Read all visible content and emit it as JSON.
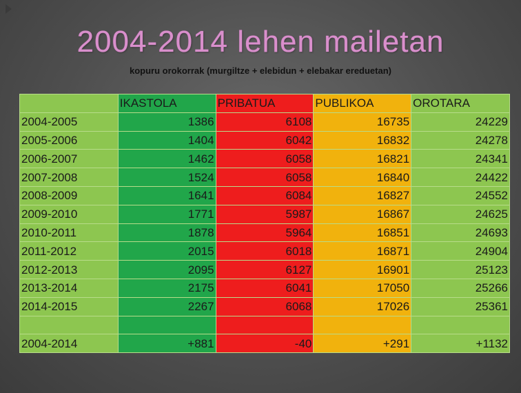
{
  "slide": {
    "title": "2004-2014 lehen mailetan",
    "subtitle": "kopuru orokorrak  (murgiltze  + elebidun + elebakar ereduetan)"
  },
  "table": {
    "headers": [
      "",
      "IKASTOLA",
      "PRIBATUA",
      "PUBLIKOA",
      "OROTARA"
    ],
    "rows": [
      {
        "period": "2004-2005",
        "ikastola": "1386",
        "pribatua": "6108",
        "publikoa": "16735",
        "orotara": "24229"
      },
      {
        "period": "2005-2006",
        "ikastola": "1404",
        "pribatua": "6042",
        "publikoa": "16832",
        "orotara": "24278"
      },
      {
        "period": "2006-2007",
        "ikastola": "1462",
        "pribatua": "6058",
        "publikoa": "16821",
        "orotara": "24341"
      },
      {
        "period": "2007-2008",
        "ikastola": "1524",
        "pribatua": "6058",
        "publikoa": "16840",
        "orotara": "24422"
      },
      {
        "period": "2008-2009",
        "ikastola": "1641",
        "pribatua": "6084",
        "publikoa": "16827",
        "orotara": "24552"
      },
      {
        "period": "2009-2010",
        "ikastola": "1771",
        "pribatua": "5987",
        "publikoa": "16867",
        "orotara": "24625"
      },
      {
        "period": "2010-2011",
        "ikastola": "1878",
        "pribatua": "5964",
        "publikoa": "16851",
        "orotara": "24693"
      },
      {
        "period": "2011-2012",
        "ikastola": "2015",
        "pribatua": "6018",
        "publikoa": "16871",
        "orotara": "24904"
      },
      {
        "period": "2012-2013",
        "ikastola": "2095",
        "pribatua": "6127",
        "publikoa": "16901",
        "orotara": "25123"
      },
      {
        "period": "2013-2014",
        "ikastola": "2175",
        "pribatua": "6041",
        "publikoa": "17050",
        "orotara": "25266"
      },
      {
        "period": "2014-2015",
        "ikastola": "2267",
        "pribatua": "6068",
        "publikoa": "17026",
        "orotara": "25361"
      }
    ],
    "summary": {
      "period": "2004-2014",
      "ikastola": "+881",
      "pribatua": "-40",
      "publikoa": "+291",
      "orotara": "+1132"
    }
  },
  "colors": {
    "ikastola": "#21a64a",
    "pribatua": "#ee1d1d",
    "publikoa": "#f1b20d",
    "orotara": "#8dc650",
    "title": "#d98fcc",
    "background": "#555555"
  }
}
